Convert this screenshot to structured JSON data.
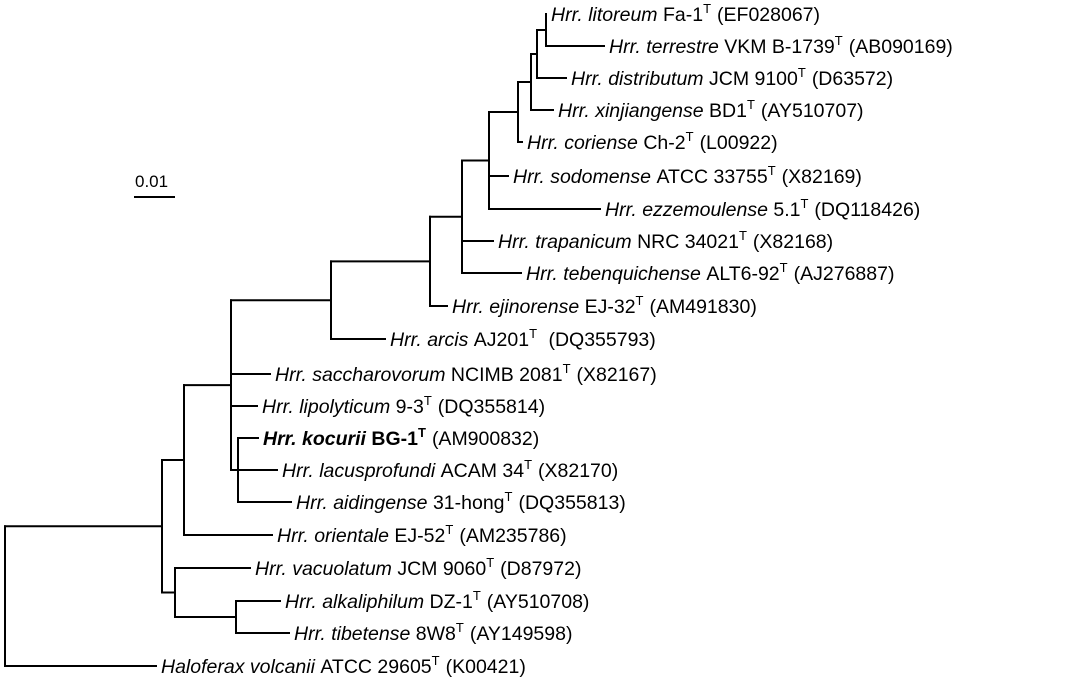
{
  "scale_bar": {
    "label": "0.01",
    "value": 0.01
  },
  "taxa": [
    {
      "id": "t1",
      "genus": "Hrr.",
      "species": "litoreum",
      "strain": "Fa-1",
      "type_mark": "T",
      "accession": "(EF028067)",
      "bold": false
    },
    {
      "id": "t2",
      "genus": "Hrr.",
      "species": "terrestre",
      "strain": "VKM B-1739",
      "type_mark": "T",
      "accession": "(AB090169)",
      "bold": false
    },
    {
      "id": "t3",
      "genus": "Hrr.",
      "species": "distributum",
      "strain": "JCM 9100",
      "type_mark": "T",
      "accession": "(D63572)",
      "bold": false
    },
    {
      "id": "t4",
      "genus": "Hrr.",
      "species": "xinjiangense",
      "strain": "BD1",
      "type_mark": "T",
      "accession": "(AY510707)",
      "bold": false
    },
    {
      "id": "t5",
      "genus": "Hrr.",
      "species": "coriense",
      "strain": "Ch-2",
      "type_mark": "T",
      "accession": "(L00922)",
      "bold": false
    },
    {
      "id": "t6",
      "genus": "Hrr.",
      "species": "sodomense",
      "strain": "ATCC 33755",
      "type_mark": "T",
      "accession": "(X82169)",
      "bold": false
    },
    {
      "id": "t7",
      "genus": "Hrr.",
      "species": "ezzemoulense",
      "strain": "5.1",
      "type_mark": "T",
      "accession": "(DQ118426)",
      "bold": false
    },
    {
      "id": "t8",
      "genus": "Hrr.",
      "species": "trapanicum",
      "strain": "NRC 34021",
      "type_mark": "T",
      "accession": "(X82168)",
      "bold": false
    },
    {
      "id": "t9",
      "genus": "Hrr.",
      "species": "tebenquichense",
      "strain": "ALT6-92",
      "type_mark": "T",
      "accession": "(AJ276887)",
      "bold": false
    },
    {
      "id": "t10",
      "genus": "Hrr.",
      "species": "ejinorense",
      "strain": "EJ-32",
      "type_mark": "T",
      "accession": "(AM491830)",
      "bold": false
    },
    {
      "id": "t11",
      "genus": "Hrr.",
      "species": "arcis",
      "strain": "AJ201",
      "type_mark": "T",
      "accession": " (DQ355793)",
      "bold": false
    },
    {
      "id": "t12",
      "genus": "Hrr.",
      "species": "saccharovorum",
      "strain": "NCIMB 2081",
      "type_mark": "T",
      "accession": "(X82167)",
      "bold": false
    },
    {
      "id": "t13",
      "genus": "Hrr.",
      "species": "lipolyticum",
      "strain": "9-3",
      "type_mark": "T",
      "accession": "(DQ355814)",
      "bold": false
    },
    {
      "id": "t14",
      "genus": "Hrr.",
      "species": "kocurii",
      "strain": "BG-1",
      "type_mark": "T",
      "accession": "(AM900832)",
      "bold": true
    },
    {
      "id": "t15",
      "genus": "Hrr.",
      "species": "lacusprofundi",
      "strain": "ACAM 34",
      "type_mark": "T",
      "accession": "(X82170)",
      "bold": false
    },
    {
      "id": "t16",
      "genus": "Hrr.",
      "species": "aidingense",
      "strain": "31-hong",
      "type_mark": "T",
      "accession": "(DQ355813)",
      "bold": false
    },
    {
      "id": "t17",
      "genus": "Hrr.",
      "species": "orientale",
      "strain": "EJ-52",
      "type_mark": "T",
      "accession": "(AM235786)",
      "bold": false
    },
    {
      "id": "t18",
      "genus": "Hrr.",
      "species": "vacuolatum",
      "strain": "JCM 9060",
      "type_mark": "T",
      "accession": "(D87972)",
      "bold": false
    },
    {
      "id": "t19",
      "genus": "Hrr.",
      "species": "alkaliphilum",
      "strain": "DZ-1",
      "type_mark": "T",
      "accession": "(AY510708)",
      "bold": false
    },
    {
      "id": "t20",
      "genus": "Hrr.",
      "species": "tibetense",
      "strain": "8W8",
      "type_mark": "T",
      "accession": "(AY149598)",
      "bold": false
    },
    {
      "id": "t21",
      "genus": "Haloferax",
      "species": "volcanii",
      "strain": "ATCC 29605",
      "type_mark": "T",
      "accession": "(K00421)",
      "bold": false
    }
  ]
}
